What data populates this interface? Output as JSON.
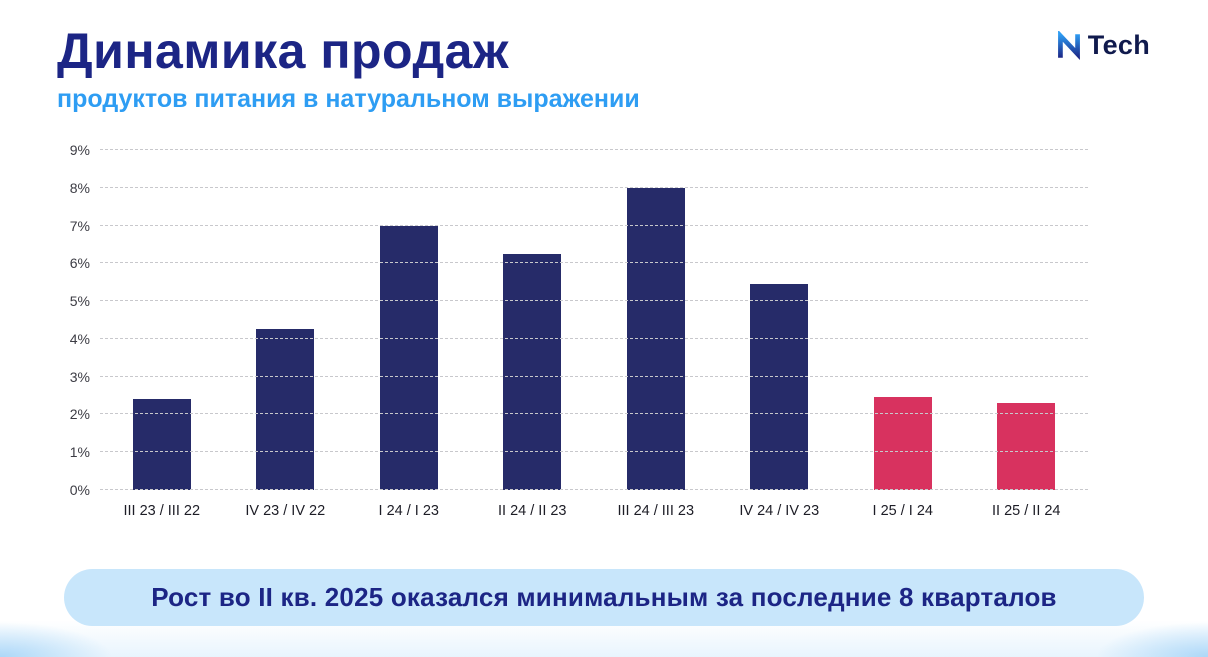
{
  "header": {
    "title": "Динамика продаж",
    "subtitle": "продуктов питания в натуральном выражении",
    "logo_text": "Tech"
  },
  "colors": {
    "title_navy": "#1c2585",
    "subtitle_blue": "#2e9df3",
    "bar_navy": "#262b69",
    "bar_pink": "#d8325f",
    "banner_bg": "#c8e6fb",
    "gridline_gray": "#c8c8cc"
  },
  "chart_data": {
    "type": "bar",
    "title": "Динамика продаж продуктов питания в натуральном выражении",
    "categories": [
      "III 23 / III 22",
      "IV 23 / IV 22",
      "I 24 / I 23",
      "II 24 / II 23",
      "III 24 / III 23",
      "IV 24 / IV 23",
      "I 25 / I 24",
      "II 25 / II 24"
    ],
    "values": [
      2.4,
      4.25,
      7.0,
      6.25,
      8.0,
      5.45,
      2.45,
      2.3
    ],
    "unit": "%",
    "xlabel": "",
    "ylabel": "",
    "ylim": [
      0,
      9
    ],
    "ytick_step": 1,
    "ytick_labels": [
      "0%",
      "1%",
      "2%",
      "3%",
      "4%",
      "5%",
      "6%",
      "7%",
      "8%",
      "9%"
    ],
    "grid": "dashed-horizontal",
    "legend": "none",
    "bar_colors": [
      "#262b69",
      "#262b69",
      "#262b69",
      "#262b69",
      "#262b69",
      "#262b69",
      "#d8325f",
      "#d8325f"
    ]
  },
  "footer": {
    "banner_text": "Рост во II кв. 2025 оказался минимальным за последние 8 кварталов"
  }
}
